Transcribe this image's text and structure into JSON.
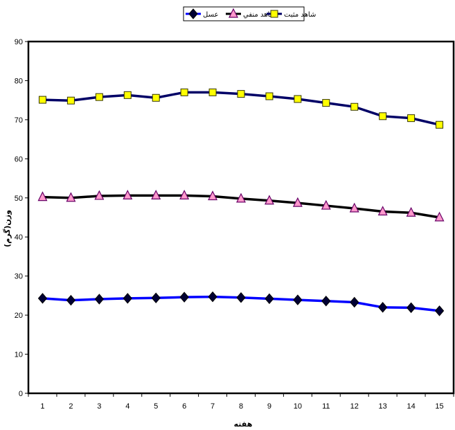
{
  "chart_data": {
    "type": "line",
    "x": [
      1,
      2,
      3,
      4,
      5,
      6,
      7,
      8,
      9,
      10,
      11,
      12,
      13,
      14,
      15
    ],
    "xlabel": "هفته",
    "ylabel": "وزن(گرم)",
    "ylim": [
      0,
      90
    ],
    "yticks": [
      0,
      10,
      20,
      30,
      40,
      50,
      60,
      70,
      80,
      90
    ],
    "grid": false,
    "legend_position": "top-center",
    "series": [
      {
        "name": "عسل",
        "color": "#0000ff",
        "marker": "diamond",
        "marker_color": "#000033",
        "values": [
          24.3,
          23.8,
          24.1,
          24.3,
          24.4,
          24.6,
          24.7,
          24.5,
          24.2,
          23.9,
          23.6,
          23.3,
          22.0,
          21.9,
          21.1
        ]
      },
      {
        "name": "شاهد منفي",
        "color": "#000000",
        "marker": "triangle",
        "marker_color": "#ff99cc",
        "values": [
          50.2,
          50.0,
          50.5,
          50.6,
          50.6,
          50.6,
          50.4,
          49.8,
          49.3,
          48.7,
          48.0,
          47.3,
          46.5,
          46.2,
          45.0
        ]
      },
      {
        "name": "شاهد مثبت",
        "color": "#000066",
        "marker": "square",
        "marker_color": "#ffff00",
        "values": [
          75.1,
          74.9,
          75.8,
          76.3,
          75.6,
          77.0,
          77.0,
          76.6,
          76.0,
          75.3,
          74.3,
          73.3,
          70.9,
          70.4,
          68.7
        ]
      }
    ]
  }
}
